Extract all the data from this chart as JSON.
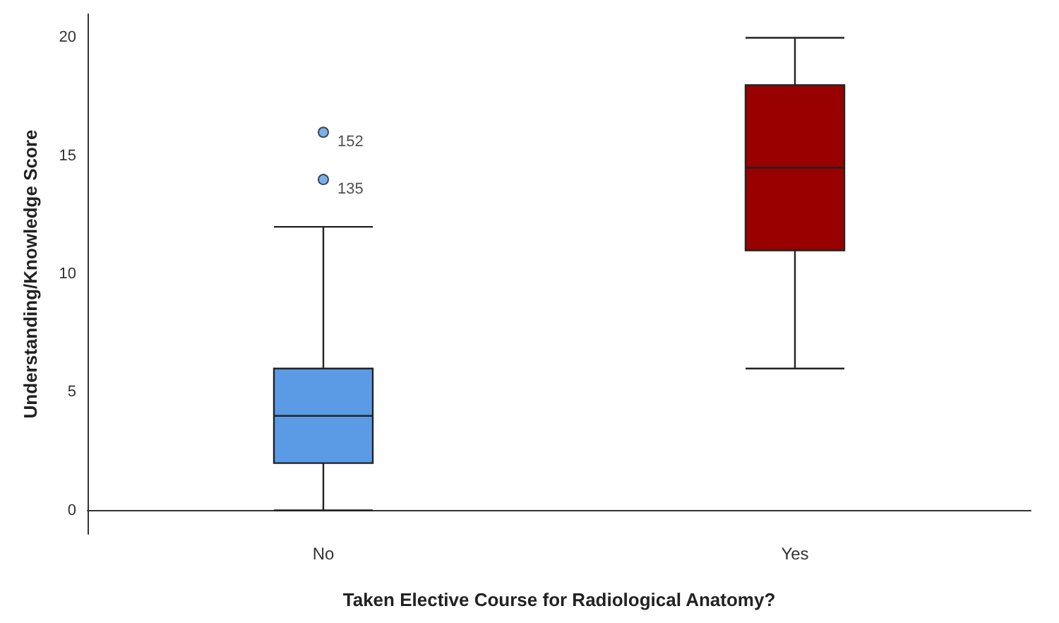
{
  "chart_data": {
    "type": "box",
    "xlabel": "Taken Elective Course for Radiological Anatomy?",
    "ylabel": "Understanding/Knowledge Score",
    "categories": [
      "No",
      "Yes"
    ],
    "colors": [
      "#5b9be6",
      "#990000"
    ],
    "boxes": [
      {
        "low": 0,
        "q1": 2,
        "median": 4,
        "q3": 6,
        "high": 12,
        "outliers": [
          14,
          16
        ]
      },
      {
        "low": 6,
        "q1": 11,
        "median": 14.5,
        "q3": 18,
        "high": 20
      }
    ],
    "ylim": [
      -1,
      21
    ],
    "yticks": [
      0,
      5,
      10,
      15,
      20
    ],
    "annotations": [
      "152",
      "135"
    ],
    "grid": false
  }
}
